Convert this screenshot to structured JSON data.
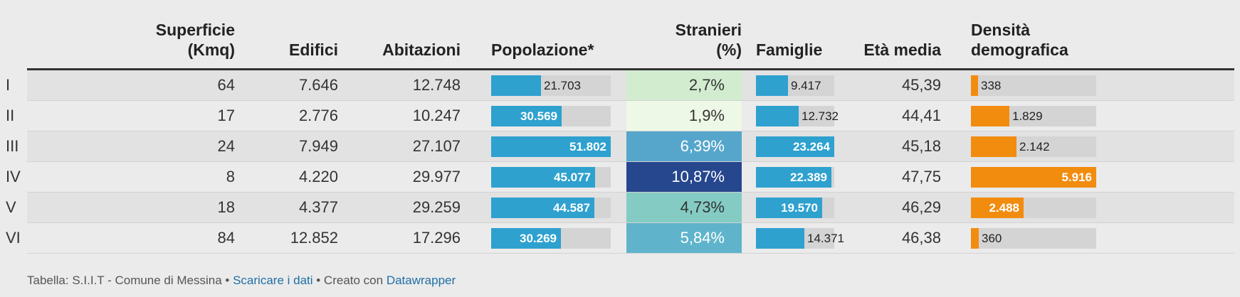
{
  "chart_data": {
    "type": "table",
    "columns": [
      {
        "key": "label",
        "title": ""
      },
      {
        "key": "superficie",
        "title": [
          "Superficie",
          "(Kmq)"
        ]
      },
      {
        "key": "edifici",
        "title": [
          "Edifici"
        ]
      },
      {
        "key": "abitazioni",
        "title": [
          "Abitazioni"
        ]
      },
      {
        "key": "popolazione",
        "title": [
          "Popolazione*"
        ]
      },
      {
        "key": "stranieri",
        "title": [
          "Stranieri",
          "(%)"
        ]
      },
      {
        "key": "famiglie",
        "title": [
          "Famiglie"
        ]
      },
      {
        "key": "eta",
        "title": [
          "Età media"
        ]
      },
      {
        "key": "densita",
        "title": [
          "Densità",
          "demografica"
        ]
      }
    ],
    "rows": [
      {
        "label": "I",
        "superficie": "64",
        "edifici": "7.646",
        "abitazioni": "12.748",
        "popolazione": 21703,
        "popolazione_label": "21.703",
        "stranieri": 2.7,
        "stranieri_label": "2,7%",
        "famiglie": 9417,
        "famiglie_label": "9.417",
        "eta": "45,39",
        "densita": 338,
        "densita_label": "338"
      },
      {
        "label": "II",
        "superficie": "17",
        "edifici": "2.776",
        "abitazioni": "10.247",
        "popolazione": 30569,
        "popolazione_label": "30.569",
        "stranieri": 1.9,
        "stranieri_label": "1,9%",
        "famiglie": 12732,
        "famiglie_label": "12.732",
        "eta": "44,41",
        "densita": 1829,
        "densita_label": "1.829"
      },
      {
        "label": "III",
        "superficie": "24",
        "edifici": "7.949",
        "abitazioni": "27.107",
        "popolazione": 51802,
        "popolazione_label": "51.802",
        "stranieri": 6.39,
        "stranieri_label": "6,39%",
        "famiglie": 23264,
        "famiglie_label": "23.264",
        "eta": "45,18",
        "densita": 2142,
        "densita_label": "2.142"
      },
      {
        "label": "IV",
        "superficie": "8",
        "edifici": "4.220",
        "abitazioni": "29.977",
        "popolazione": 45077,
        "popolazione_label": "45.077",
        "stranieri": 10.87,
        "stranieri_label": "10,87%",
        "famiglie": 22389,
        "famiglie_label": "22.389",
        "eta": "47,75",
        "densita": 5916,
        "densita_label": "5.916"
      },
      {
        "label": "V",
        "superficie": "18",
        "edifici": "4.377",
        "abitazioni": "29.259",
        "popolazione": 44587,
        "popolazione_label": "44.587",
        "stranieri": 4.73,
        "stranieri_label": "4,73%",
        "famiglie": 19570,
        "famiglie_label": "19.570",
        "eta": "46,29",
        "densita": 2488,
        "densita_label": "2.488"
      },
      {
        "label": "VI",
        "superficie": "84",
        "edifici": "12.852",
        "abitazioni": "17.296",
        "popolazione": 30269,
        "popolazione_label": "30.269",
        "stranieri": 5.84,
        "stranieri_label": "5,84%",
        "famiglie": 14371,
        "famiglie_label": "14.371",
        "eta": "46,38",
        "densita": 360,
        "densita_label": "360"
      }
    ],
    "bar_max": {
      "popolazione": 51802,
      "famiglie": 23264,
      "densita": 5916
    },
    "colors": {
      "bar_blue": "#2ea1cf",
      "bar_orange": "#f28c0f",
      "track": "#d4d4d4",
      "heat_scale": [
        {
          "at": 1.9,
          "color": "#eef8e6"
        },
        {
          "at": 2.7,
          "color": "#d2ecd0"
        },
        {
          "at": 4.73,
          "color": "#84cbc4"
        },
        {
          "at": 5.84,
          "color": "#5fb4cb"
        },
        {
          "at": 6.39,
          "color": "#56a6cb"
        },
        {
          "at": 10.87,
          "color": "#26478e"
        }
      ]
    }
  },
  "footer": {
    "prefix": "Tabella: S.I.I.T - Comune di Messina • ",
    "link1": "Scaricare i dati",
    "middle": " • Creato con ",
    "link2": "Datawrapper"
  }
}
